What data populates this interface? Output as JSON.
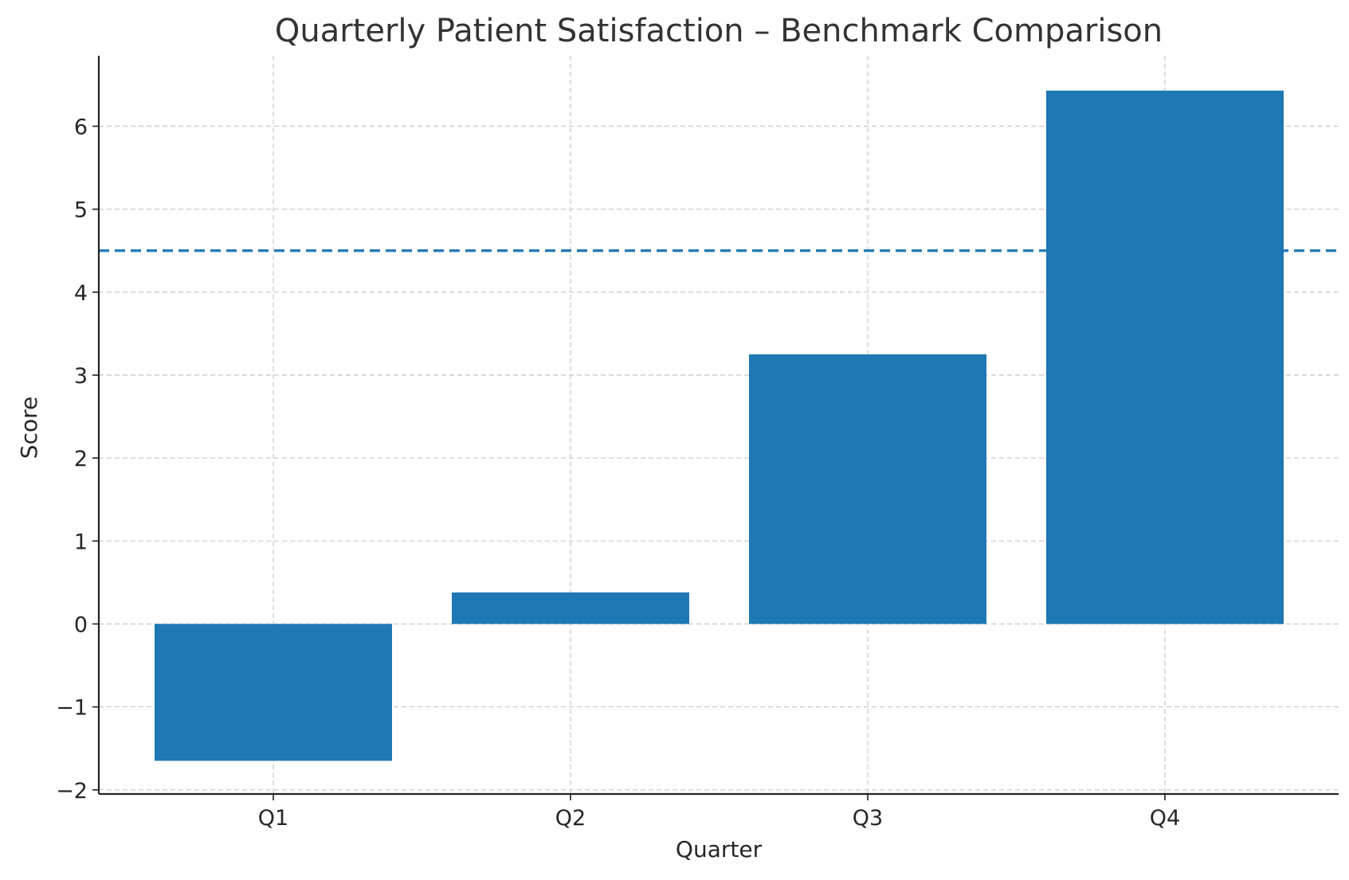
{
  "chart_data": {
    "type": "bar",
    "title": "Quarterly Patient Satisfaction – Benchmark Comparison",
    "xlabel": "Quarter",
    "ylabel": "Score",
    "categories": [
      "Q1",
      "Q2",
      "Q3",
      "Q4"
    ],
    "values": [
      -1.65,
      0.38,
      3.25,
      6.43
    ],
    "benchmark": 4.5,
    "ylim": [
      -2.05,
      6.85
    ],
    "yticks": [
      -2,
      -1,
      0,
      1,
      2,
      3,
      4,
      5,
      6
    ],
    "ytick_labels": [
      "−2",
      "−1",
      "0",
      "1",
      "2",
      "3",
      "4",
      "5",
      "6"
    ],
    "grid": true,
    "colors": {
      "bar": "#1f77b4",
      "benchmark_line": "#1f77b4",
      "grid": "#c8c8c8"
    }
  }
}
